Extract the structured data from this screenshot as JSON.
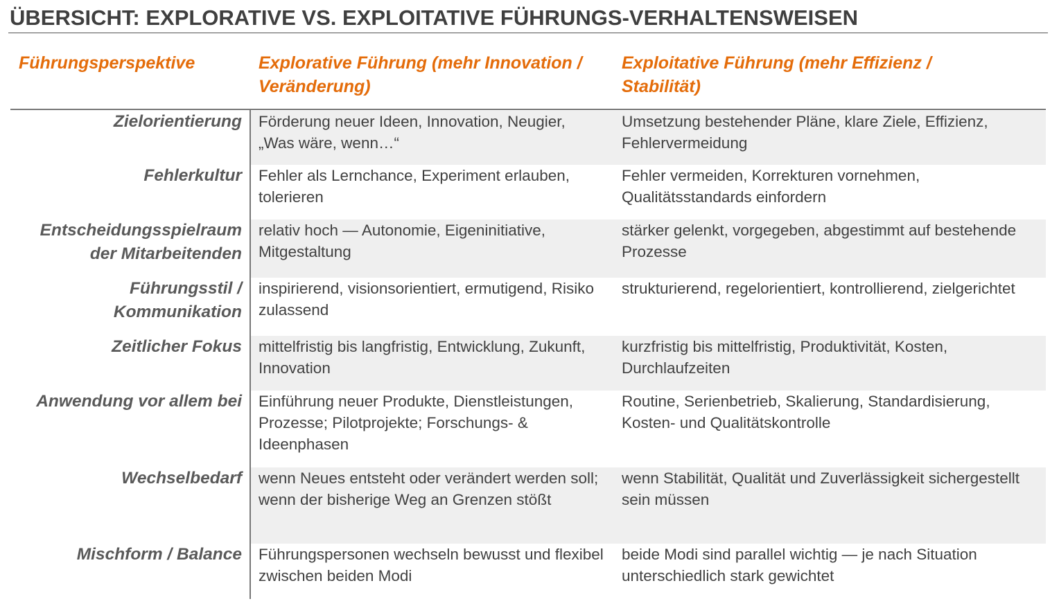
{
  "header": {
    "title": "ÜBERSICHT: EXPLORATIVE VS. EXPLOITATIVE FÜHRUNGS-VERHALTENSWEISEN"
  },
  "table": {
    "columns": [
      "Führungsperspektive",
      "Explorative Führung (mehr Innovation / Veränderung)",
      "Exploitative Führung (mehr Effizienz / Stabilität)"
    ],
    "rows": [
      [
        "Zielorientierung",
        "Förderung neuer Ideen, Innovation, Neugier, „Was wäre, wenn…“",
        "Umsetzung bestehender Pläne, klare Ziele, Effizienz, Fehlervermeidung"
      ],
      [
        "Fehlerkultur",
        "Fehler als Lernchance, Experiment erlauben, tolerieren",
        "Fehler vermeiden, Korrekturen vornehmen, Qualitätsstandards einfordern"
      ],
      [
        "Entscheidungsspielraum der Mitarbeitenden",
        "relativ hoch — Autonomie, Eigeninitiative, Mitgestaltung",
        "stärker gelenkt, vorgegeben, abgestimmt auf bestehende Prozesse"
      ],
      [
        "Führungsstil / Kommunikation",
        "inspirierend, visionsorientiert, ermutigend, Risiko zulassend",
        "strukturierend, regelorientiert, kontrollierend, zielgerichtet"
      ],
      [
        "Zeitlicher Fokus",
        "mittelfristig bis langfristig, Entwicklung, Zukunft, Innovation",
        "kurzfristig bis mittelfristig, Produktivität, Kosten, Durchlaufzeiten"
      ],
      [
        "Anwendung vor allem bei",
        "Einführung neuer Produkte, Dienstleistungen, Prozesse; Pilotprojekte; Forschungs- & Ideenphasen",
        "Routine, Serienbetrieb, Skalierung, Standardisierung, Kosten- und Qualitätskontrolle"
      ],
      [
        "Wechselbedarf",
        "wenn Neues entsteht oder verändert werden soll; wenn der bisherige Weg an Grenzen stößt",
        "wenn Stabilität, Qualität und Zuverlässigkeit sichergestellt sein müssen"
      ],
      [
        "Mischform / Balance",
        "Führungspersonen wechseln bewusst und flexibel zwischen beiden Modi",
        "beide Modi sind parallel wichtig — je nach Situation unterschiedlich stark gewichtet"
      ]
    ]
  }
}
